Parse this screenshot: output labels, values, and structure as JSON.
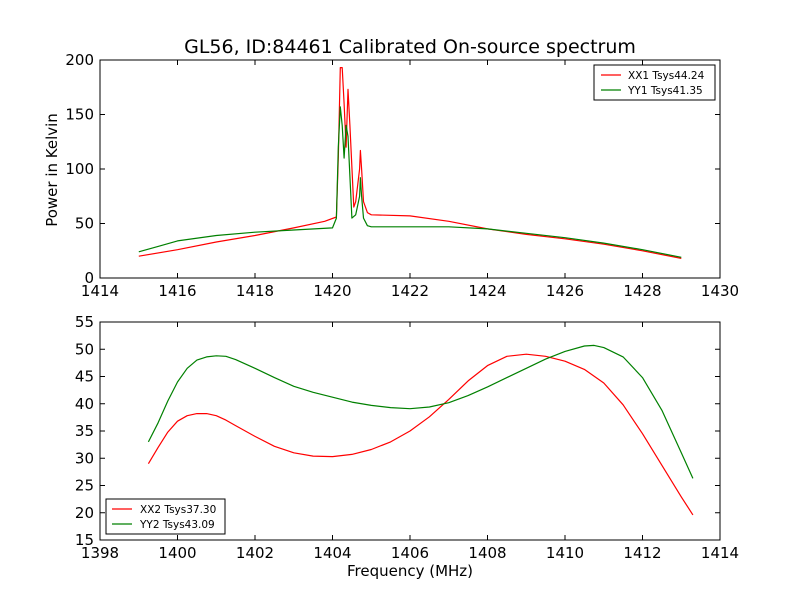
{
  "chart_data": [
    {
      "type": "line",
      "title": "GL56, ID:84461 Calibrated On-source spectrum",
      "xlabel": "",
      "ylabel": "Power in Kelvin",
      "xlim": [
        1414,
        1430
      ],
      "ylim": [
        0,
        200
      ],
      "xticks": [
        "1414",
        "1416",
        "1418",
        "1420",
        "1422",
        "1424",
        "1426",
        "1428",
        "1430"
      ],
      "yticks": [
        "0",
        "50",
        "100",
        "150",
        "200"
      ],
      "legend": "top-right",
      "grid": false,
      "series": [
        {
          "name": "XX1 Tsys44.24",
          "color": "#ff0000",
          "points": [
            [
              1415.0,
              20
            ],
            [
              1416.0,
              26
            ],
            [
              1417.0,
              33
            ],
            [
              1418.0,
              39
            ],
            [
              1419.0,
              46
            ],
            [
              1419.8,
              52
            ],
            [
              1420.1,
              56
            ],
            [
              1420.15,
              110
            ],
            [
              1420.2,
              193
            ],
            [
              1420.25,
              193
            ],
            [
              1420.3,
              160
            ],
            [
              1420.35,
              120
            ],
            [
              1420.4,
              173
            ],
            [
              1420.45,
              140
            ],
            [
              1420.55,
              65
            ],
            [
              1420.6,
              70
            ],
            [
              1420.7,
              100
            ],
            [
              1420.72,
              117
            ],
            [
              1420.75,
              100
            ],
            [
              1420.8,
              70
            ],
            [
              1420.9,
              60
            ],
            [
              1421.0,
              58
            ],
            [
              1422.0,
              57
            ],
            [
              1423.0,
              52
            ],
            [
              1424.0,
              45
            ],
            [
              1425.0,
              40
            ],
            [
              1426.0,
              36
            ],
            [
              1427.0,
              31
            ],
            [
              1428.0,
              25
            ],
            [
              1429.0,
              18
            ]
          ]
        },
        {
          "name": "YY1 Tsys41.35",
          "color": "#008000",
          "points": [
            [
              1415.0,
              24
            ],
            [
              1415.5,
              29
            ],
            [
              1416.0,
              34
            ],
            [
              1417.0,
              39
            ],
            [
              1418.0,
              42
            ],
            [
              1419.0,
              44
            ],
            [
              1420.0,
              46
            ],
            [
              1420.1,
              55
            ],
            [
              1420.15,
              120
            ],
            [
              1420.2,
              157
            ],
            [
              1420.25,
              140
            ],
            [
              1420.3,
              110
            ],
            [
              1420.35,
              140
            ],
            [
              1420.4,
              130
            ],
            [
              1420.5,
              55
            ],
            [
              1420.6,
              58
            ],
            [
              1420.7,
              75
            ],
            [
              1420.72,
              92
            ],
            [
              1420.75,
              75
            ],
            [
              1420.8,
              55
            ],
            [
              1420.9,
              48
            ],
            [
              1421.0,
              47
            ],
            [
              1422.0,
              47
            ],
            [
              1423.0,
              47
            ],
            [
              1424.0,
              45
            ],
            [
              1425.0,
              41
            ],
            [
              1426.0,
              37
            ],
            [
              1427.0,
              32
            ],
            [
              1428.0,
              26
            ],
            [
              1429.0,
              19
            ]
          ]
        }
      ]
    },
    {
      "type": "line",
      "title": "",
      "xlabel": "Frequency (MHz)",
      "ylabel": "",
      "xlim": [
        1398,
        1414
      ],
      "ylim": [
        15,
        55
      ],
      "xticks": [
        "1398",
        "1400",
        "1402",
        "1404",
        "1406",
        "1408",
        "1410",
        "1412",
        "1414"
      ],
      "yticks": [
        "15",
        "20",
        "25",
        "30",
        "35",
        "40",
        "45",
        "50",
        "55"
      ],
      "legend": "bottom-left",
      "grid": false,
      "series": [
        {
          "name": "XX2 Tsys37.30",
          "color": "#ff0000",
          "points": [
            [
              1399.25,
              29
            ],
            [
              1399.5,
              32
            ],
            [
              1399.75,
              34.8
            ],
            [
              1400.0,
              36.8
            ],
            [
              1400.25,
              37.8
            ],
            [
              1400.5,
              38.2
            ],
            [
              1400.75,
              38.2
            ],
            [
              1401.0,
              37.8
            ],
            [
              1401.25,
              37
            ],
            [
              1401.5,
              36
            ],
            [
              1402.0,
              34
            ],
            [
              1402.5,
              32.2
            ],
            [
              1403.0,
              31
            ],
            [
              1403.5,
              30.4
            ],
            [
              1404.0,
              30.3
            ],
            [
              1404.5,
              30.7
            ],
            [
              1405.0,
              31.6
            ],
            [
              1405.5,
              33
            ],
            [
              1406.0,
              35
            ],
            [
              1406.5,
              37.6
            ],
            [
              1407.0,
              40.8
            ],
            [
              1407.5,
              44.2
            ],
            [
              1408.0,
              47
            ],
            [
              1408.5,
              48.7
            ],
            [
              1409.0,
              49.1
            ],
            [
              1409.5,
              48.7
            ],
            [
              1410.0,
              47.8
            ],
            [
              1410.5,
              46.3
            ],
            [
              1411.0,
              43.8
            ],
            [
              1411.5,
              39.8
            ],
            [
              1412.0,
              34.5
            ],
            [
              1412.5,
              28.7
            ],
            [
              1413.0,
              22.9
            ],
            [
              1413.3,
              19.6
            ]
          ]
        },
        {
          "name": "YY2 Tsys43.09",
          "color": "#008000",
          "points": [
            [
              1399.25,
              33
            ],
            [
              1399.5,
              36.5
            ],
            [
              1399.75,
              40.5
            ],
            [
              1400.0,
              44
            ],
            [
              1400.25,
              46.5
            ],
            [
              1400.5,
              48
            ],
            [
              1400.75,
              48.6
            ],
            [
              1401.0,
              48.8
            ],
            [
              1401.25,
              48.7
            ],
            [
              1401.5,
              48.1
            ],
            [
              1402.0,
              46.5
            ],
            [
              1402.5,
              44.8
            ],
            [
              1403.0,
              43.2
            ],
            [
              1403.5,
              42.1
            ],
            [
              1404.0,
              41.2
            ],
            [
              1404.5,
              40.3
            ],
            [
              1405.0,
              39.7
            ],
            [
              1405.5,
              39.3
            ],
            [
              1406.0,
              39.1
            ],
            [
              1406.5,
              39.4
            ],
            [
              1407.0,
              40.2
            ],
            [
              1407.5,
              41.5
            ],
            [
              1408.0,
              43.1
            ],
            [
              1408.5,
              44.8
            ],
            [
              1409.0,
              46.5
            ],
            [
              1409.5,
              48.2
            ],
            [
              1410.0,
              49.6
            ],
            [
              1410.5,
              50.6
            ],
            [
              1410.75,
              50.7
            ],
            [
              1411.0,
              50.3
            ],
            [
              1411.5,
              48.6
            ],
            [
              1412.0,
              44.8
            ],
            [
              1412.5,
              38.8
            ],
            [
              1413.0,
              31
            ],
            [
              1413.3,
              26.3
            ]
          ]
        }
      ]
    }
  ]
}
